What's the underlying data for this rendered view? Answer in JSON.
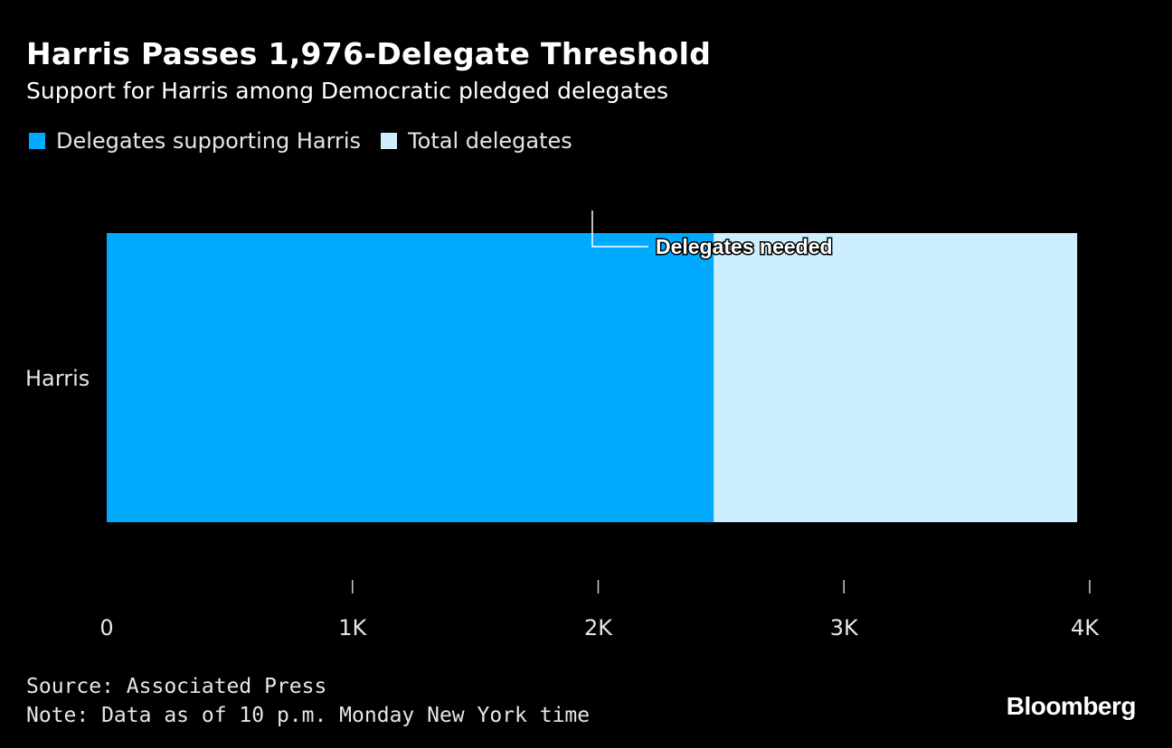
{
  "header": {
    "title": "Harris Passes 1,976-Delegate Threshold",
    "subtitle": "Support for Harris among Democratic pledged delegates"
  },
  "legend": {
    "items": [
      {
        "label": "Delegates supporting Harris",
        "color": "#00aaff"
      },
      {
        "label": "Total delegates",
        "color": "#cdeeff"
      }
    ]
  },
  "chart_data": {
    "type": "bar",
    "orientation": "horizontal",
    "categories": [
      "Harris"
    ],
    "series": [
      {
        "name": "Delegates supporting Harris",
        "values": [
          2470
        ],
        "color": "#00aaff"
      },
      {
        "name": "Total delegates",
        "values": [
          3949
        ],
        "color": "#cdeeff"
      }
    ],
    "xlim": [
      0,
      4000
    ],
    "xticks": [
      {
        "value": 0,
        "label": "0"
      },
      {
        "value": 1000,
        "label": "1K"
      },
      {
        "value": 2000,
        "label": "2K"
      },
      {
        "value": 3000,
        "label": "3K"
      },
      {
        "value": 4000,
        "label": "4K"
      }
    ],
    "annotations": [
      {
        "label": "Delegates needed",
        "value": 1976
      }
    ],
    "grid": false,
    "legend_position": "top-left"
  },
  "footer": {
    "source": "Source: Associated Press",
    "note": "Note: Data as of 10 p.m. Monday New York time"
  },
  "branding": {
    "logo": "Bloomberg"
  }
}
